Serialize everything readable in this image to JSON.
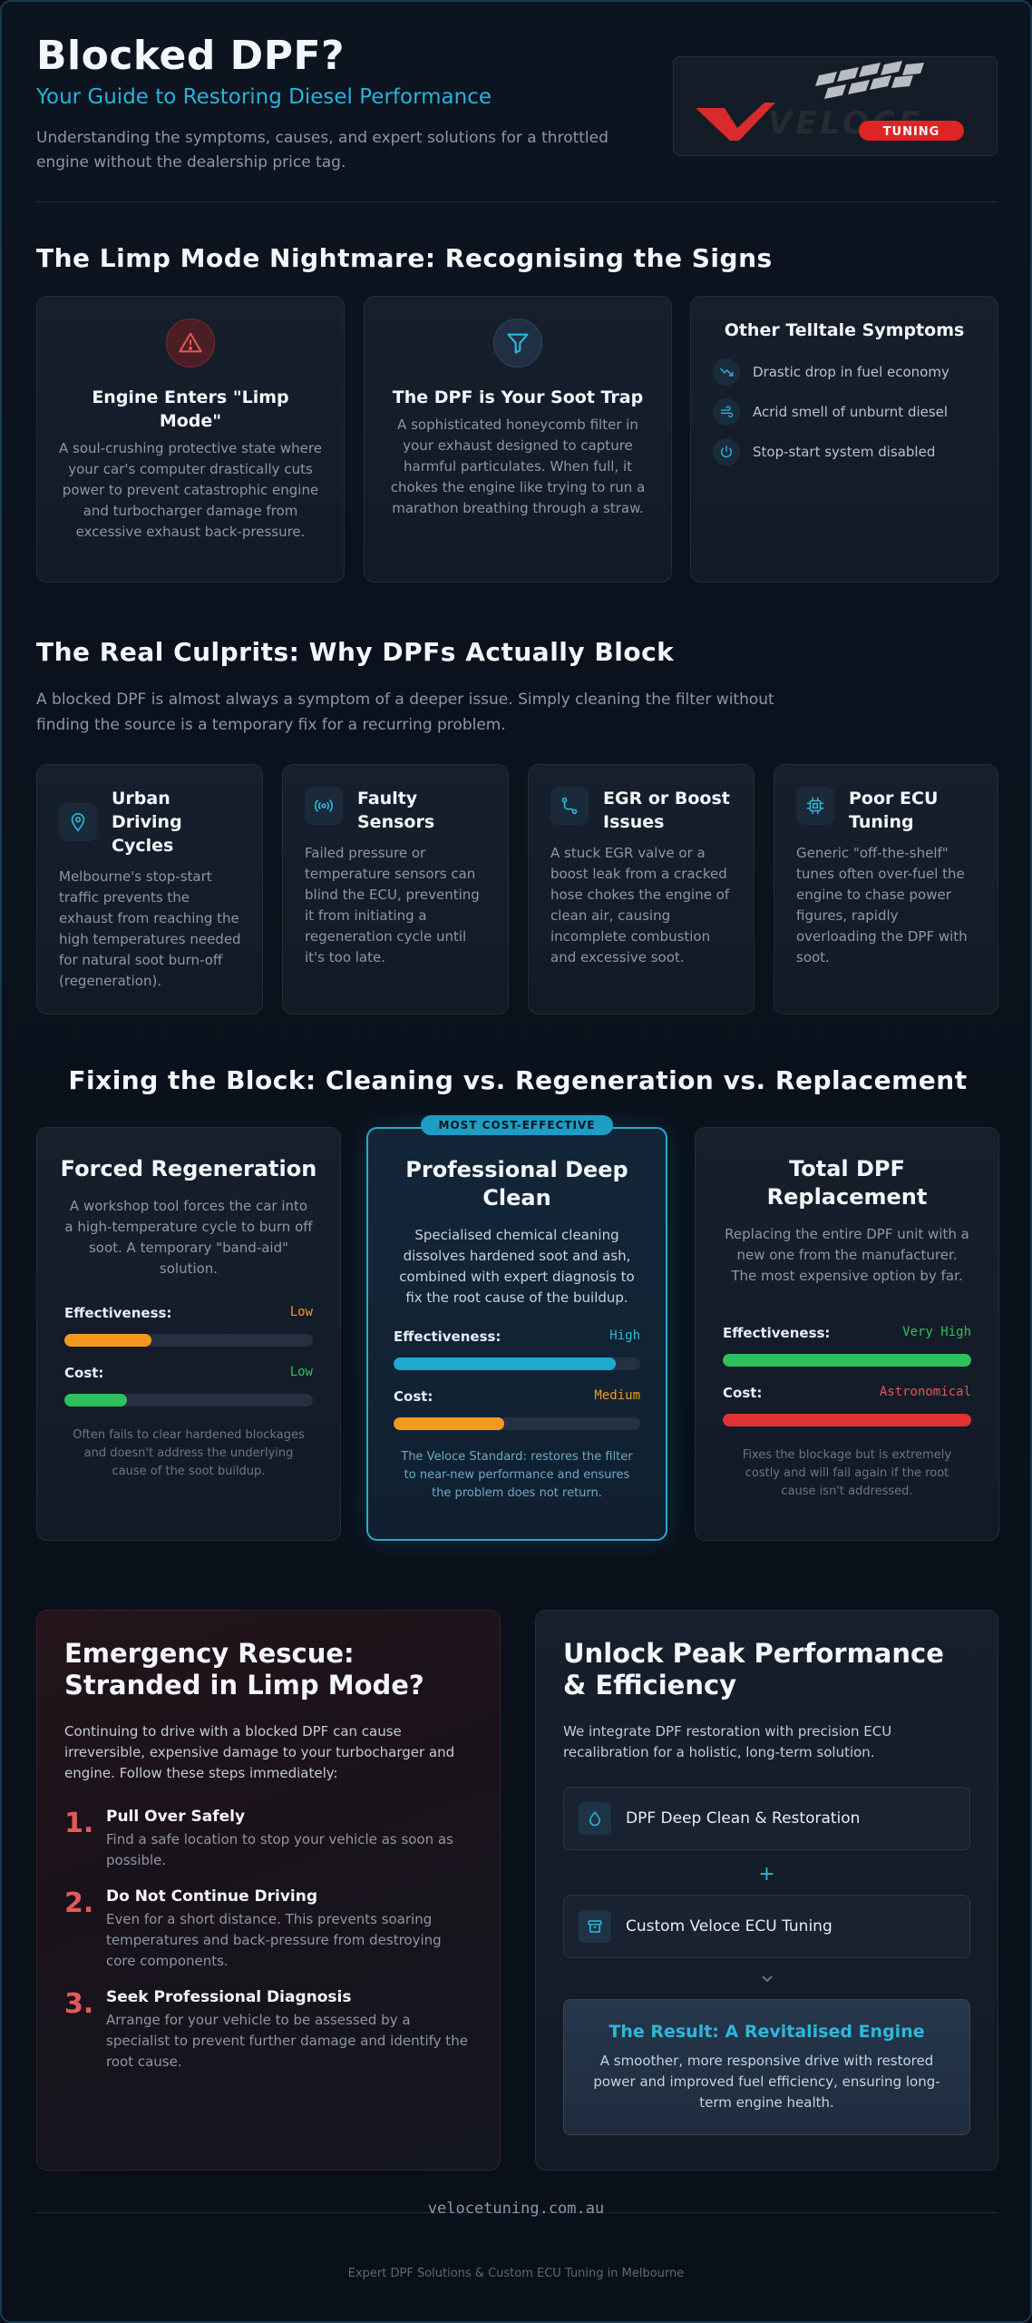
{
  "header": {
    "title": "Blocked DPF?",
    "subtitle": "Your Guide to Restoring Diesel Performance",
    "description": "Understanding the symptoms, causes, and expert solutions for a throttled engine without the dealership price tag.",
    "logo_text": "VELOCE",
    "logo_badge": "TUNING"
  },
  "signs": {
    "title": "The Limp Mode Nightmare: Recognising the Signs",
    "cards": [
      {
        "icon": "warning-icon",
        "heading": "Engine Enters \"Limp Mode\"",
        "body": "A soul-crushing protective state where your car's computer drastically cuts power to prevent catastrophic engine and turbocharger damage from excessive exhaust back-pressure."
      },
      {
        "icon": "filter-icon",
        "heading": "The DPF is Your Soot Trap",
        "body": "A sophisticated honeycomb filter in your exhaust designed to capture harmful particulates. When full, it chokes the engine like trying to run a marathon breathing through a straw."
      }
    ],
    "symptoms": {
      "heading": "Other Telltale Symptoms",
      "items": [
        {
          "icon": "trending-down-icon",
          "text": "Drastic drop in fuel economy"
        },
        {
          "icon": "wind-icon",
          "text": "Acrid smell of unburnt diesel"
        },
        {
          "icon": "power-icon",
          "text": "Stop-start system disabled"
        }
      ]
    }
  },
  "culprits": {
    "title": "The Real Culprits: Why DPFs Actually Block",
    "intro": "A blocked DPF is almost always a symptom of a deeper issue. Simply cleaning the filter without finding the source is a temporary fix for a recurring problem.",
    "cards": [
      {
        "icon": "map-pin-icon",
        "heading": "Urban Driving Cycles",
        "body": "Melbourne's stop-start traffic prevents the exhaust from reaching the high temperatures needed for natural soot burn-off (regeneration)."
      },
      {
        "icon": "sensor-icon",
        "heading": "Faulty Sensors",
        "body": "Failed pressure or temperature sensors can blind the ECU, preventing it from initiating a regeneration cycle until it's too late."
      },
      {
        "icon": "route-icon",
        "heading": "EGR or Boost Issues",
        "body": "A stuck EGR valve or a boost leak from a cracked hose chokes the engine of clean air, causing incomplete combustion and excessive soot."
      },
      {
        "icon": "chip-icon",
        "heading": "Poor ECU Tuning",
        "body": "Generic \"off-the-shelf\" tunes often over-fuel the engine to chase power figures, rapidly overloading the DPF with soot."
      }
    ]
  },
  "fixing": {
    "title": "Fixing the Block: Cleaning vs. Regeneration vs. Replacement",
    "effectiveness_label": "Effectiveness:",
    "cost_label": "Cost:",
    "options": [
      {
        "title": "Forced Regeneration",
        "description": "A workshop tool forces the car into a high-temperature cycle to burn off soot. A temporary \"band-aid\" solution.",
        "effectiveness": "Low",
        "effectiveness_fraction": 0.35,
        "effectiveness_color": "#f39a1e",
        "cost": "Low",
        "cost_fraction": 0.25,
        "cost_color": "#2ec05a",
        "note": "Often fails to clear hardened blockages and doesn't address the underlying cause of the soot buildup."
      },
      {
        "badge": "MOST COST-EFFECTIVE",
        "title": "Professional Deep Clean",
        "description": "Specialised chemical cleaning dissolves hardened soot and ash, combined with expert diagnosis to fix the root cause of the buildup.",
        "effectiveness": "High",
        "effectiveness_fraction": 0.9,
        "effectiveness_color": "#1fa9cf",
        "cost": "Medium",
        "cost_fraction": 0.45,
        "cost_color": "#f39a1e",
        "note": "The Veloce Standard: restores the filter to near-new performance and ensures the problem does not return."
      },
      {
        "title": "Total DPF Replacement",
        "description": "Replacing the entire DPF unit with a new one from the manufacturer. The most expensive option by far.",
        "effectiveness": "Very High",
        "effectiveness_fraction": 1.0,
        "effectiveness_color": "#2ec05a",
        "cost": "Astronomical",
        "cost_fraction": 1.0,
        "cost_color": "#e03232",
        "note": "Fixes the blockage but is extremely costly and will fail again if the root cause isn't addressed."
      }
    ]
  },
  "rescue": {
    "title": "Emergency Rescue: Stranded in Limp Mode?",
    "intro": "Continuing to drive with a blocked DPF can cause irreversible, expensive damage to your turbocharger and engine. Follow these steps immediately:",
    "steps": [
      {
        "num": "1.",
        "heading": "Pull Over Safely",
        "body": "Find a safe location to stop your vehicle as soon as possible."
      },
      {
        "num": "2.",
        "heading": "Do Not Continue Driving",
        "body": "Even for a short distance. This prevents soaring temperatures and back-pressure from destroying core components."
      },
      {
        "num": "3.",
        "heading": "Seek Professional Diagnosis",
        "body": "Arrange for your vehicle to be assessed by a specialist to prevent further damage and identify the root cause."
      }
    ]
  },
  "unlock": {
    "title": "Unlock Peak Performance & Efficiency",
    "intro": "We integrate DPF restoration with precision ECU recalibration for a holistic, long-term solution.",
    "service_1": "DPF Deep Clean & Restoration",
    "plus": "+",
    "service_2": "Custom Veloce ECU Tuning",
    "result_title": "The Result: A Revitalised Engine",
    "result_body": "A smoother, more responsive drive with restored power and improved fuel efficiency, ensuring long-term engine health."
  },
  "footer": {
    "url": "velocetuning.com.au",
    "tagline": "Expert DPF Solutions & Custom ECU Tuning in Melbourne"
  }
}
